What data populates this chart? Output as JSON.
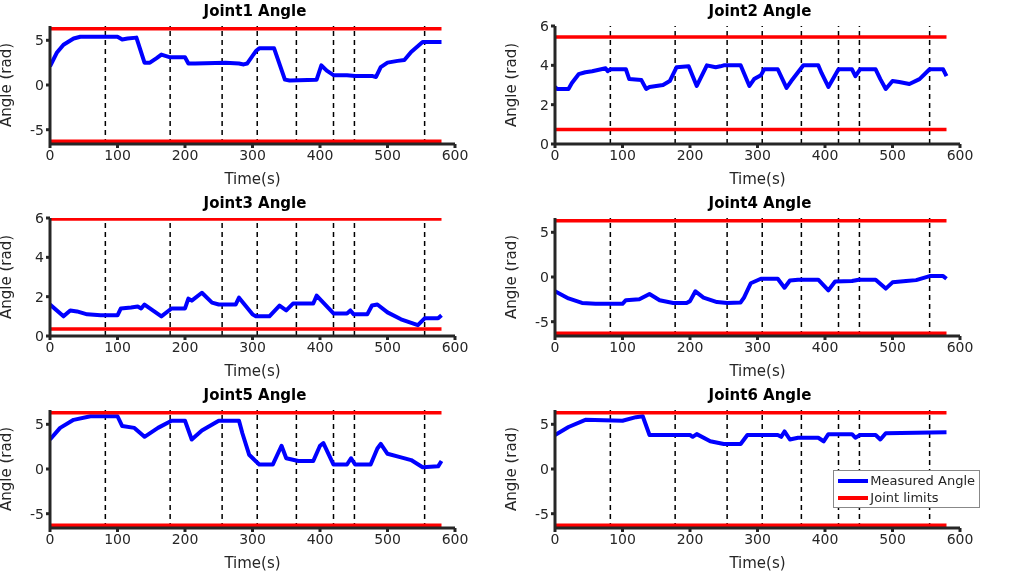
{
  "chart_data": [
    {
      "type": "line",
      "title": "Joint1 Angle",
      "xlabel": "Time(s)",
      "ylabel": "Angle (rad)",
      "xlim": [
        0,
        600
      ],
      "xticks": [
        0,
        100,
        200,
        300,
        400,
        500,
        600
      ],
      "ylim": [
        -6.6,
        6.6
      ],
      "yticks": [
        -5,
        0,
        5
      ],
      "series": [
        {
          "color": "#0000ff",
          "x": [
            0,
            10,
            20,
            35,
            45,
            100,
            107,
            115,
            128,
            140,
            148,
            158,
            165,
            178,
            200,
            205,
            215,
            260,
            280,
            287,
            292,
            305,
            310,
            332,
            348,
            355,
            395,
            402,
            410,
            420,
            440,
            452,
            478,
            483,
            490,
            500,
            515,
            525,
            535,
            552,
            580
          ],
          "values": [
            2.1,
            3.6,
            4.5,
            5.2,
            5.4,
            5.4,
            5.1,
            5.2,
            5.3,
            2.5,
            2.5,
            3.0,
            3.4,
            3.1,
            3.1,
            2.4,
            2.4,
            2.5,
            2.4,
            2.3,
            2.4,
            3.8,
            4.1,
            4.1,
            0.6,
            0.5,
            0.6,
            2.2,
            1.6,
            1.1,
            1.1,
            1.0,
            1.0,
            0.9,
            2.0,
            2.5,
            2.7,
            2.8,
            3.7,
            4.8,
            4.8
          ]
        },
        {
          "color": "#ff0000",
          "x": [
            0,
            580
          ],
          "values": [
            6.28,
            6.28
          ]
        },
        {
          "color": "#ff0000",
          "x": [
            0,
            580
          ],
          "values": [
            -6.28,
            -6.28
          ]
        }
      ],
      "ref_lines": [
        {
          "axis": "x",
          "value": 82,
          "color": "#000000",
          "line_style": "dashed"
        },
        {
          "axis": "x",
          "value": 178,
          "color": "#000000",
          "line_style": "dashed"
        },
        {
          "axis": "x",
          "value": 255,
          "color": "#000000",
          "line_style": "dashed"
        },
        {
          "axis": "x",
          "value": 307,
          "color": "#000000",
          "line_style": "dashed"
        },
        {
          "axis": "x",
          "value": 365,
          "color": "#000000",
          "line_style": "dashed"
        },
        {
          "axis": "x",
          "value": 420,
          "color": "#000000",
          "line_style": "dashed"
        },
        {
          "axis": "x",
          "value": 451,
          "color": "#000000",
          "line_style": "dashed"
        },
        {
          "axis": "x",
          "value": 555,
          "color": "#000000",
          "line_style": "dashed"
        }
      ]
    },
    {
      "type": "line",
      "title": "Joint2 Angle",
      "xlabel": "Time(s)",
      "ylabel": "Angle (rad)",
      "xlim": [
        0,
        600
      ],
      "xticks": [
        0,
        100,
        200,
        300,
        400,
        500,
        600
      ],
      "ylim": [
        0,
        6
      ],
      "yticks": [
        0,
        2,
        4,
        6
      ],
      "series": [
        {
          "color": "#0000ff",
          "x": [
            0,
            3,
            20,
            25,
            35,
            45,
            55,
            75,
            78,
            82,
            105,
            110,
            128,
            135,
            140,
            160,
            170,
            180,
            198,
            210,
            225,
            238,
            245,
            250,
            275,
            288,
            295,
            305,
            310,
            330,
            343,
            350,
            368,
            390,
            395,
            405,
            420,
            440,
            445,
            452,
            475,
            482,
            490,
            500,
            510,
            525,
            540,
            555,
            575,
            580
          ],
          "values": [
            2.9,
            2.8,
            2.8,
            3.1,
            3.55,
            3.65,
            3.7,
            3.85,
            3.7,
            3.8,
            3.8,
            3.3,
            3.25,
            2.8,
            2.9,
            3.0,
            3.2,
            3.9,
            3.95,
            2.95,
            4.0,
            3.9,
            3.95,
            4.0,
            4.0,
            2.95,
            3.3,
            3.5,
            3.8,
            3.8,
            2.85,
            3.2,
            4.0,
            4.0,
            3.6,
            2.9,
            3.8,
            3.8,
            3.45,
            3.8,
            3.8,
            3.3,
            2.8,
            3.2,
            3.15,
            3.05,
            3.3,
            3.8,
            3.8,
            3.45
          ]
        },
        {
          "color": "#ff0000",
          "x": [
            0,
            580
          ],
          "values": [
            5.44,
            5.44
          ]
        },
        {
          "color": "#ff0000",
          "x": [
            0,
            580
          ],
          "values": [
            0.74,
            0.74
          ]
        }
      ],
      "ref_lines": [
        {
          "axis": "x",
          "value": 82,
          "color": "#000000",
          "line_style": "dashed"
        },
        {
          "axis": "x",
          "value": 178,
          "color": "#000000",
          "line_style": "dashed"
        },
        {
          "axis": "x",
          "value": 255,
          "color": "#000000",
          "line_style": "dashed"
        },
        {
          "axis": "x",
          "value": 307,
          "color": "#000000",
          "line_style": "dashed"
        },
        {
          "axis": "x",
          "value": 365,
          "color": "#000000",
          "line_style": "dashed"
        },
        {
          "axis": "x",
          "value": 420,
          "color": "#000000",
          "line_style": "dashed"
        },
        {
          "axis": "x",
          "value": 451,
          "color": "#000000",
          "line_style": "dashed"
        },
        {
          "axis": "x",
          "value": 555,
          "color": "#000000",
          "line_style": "dashed"
        }
      ]
    },
    {
      "type": "line",
      "title": "Joint3 Angle",
      "xlabel": "Time(s)",
      "ylabel": "Angle (rad)",
      "xlim": [
        0,
        600
      ],
      "xticks": [
        0,
        100,
        200,
        300,
        400,
        500,
        600
      ],
      "ylim": [
        0,
        6
      ],
      "yticks": [
        0,
        2,
        4,
        6
      ],
      "series": [
        {
          "color": "#0000ff",
          "x": [
            0,
            20,
            30,
            40,
            55,
            75,
            100,
            105,
            120,
            130,
            135,
            140,
            165,
            180,
            200,
            205,
            210,
            225,
            240,
            250,
            275,
            280,
            300,
            305,
            325,
            340,
            350,
            360,
            390,
            395,
            420,
            440,
            445,
            450,
            470,
            477,
            485,
            500,
            520,
            545,
            555,
            575,
            580
          ],
          "values": [
            1.6,
            1.0,
            1.3,
            1.25,
            1.1,
            1.05,
            1.05,
            1.4,
            1.45,
            1.5,
            1.4,
            1.6,
            1.0,
            1.4,
            1.4,
            1.9,
            1.8,
            2.2,
            1.7,
            1.6,
            1.6,
            1.95,
            1.1,
            1.0,
            1.0,
            1.55,
            1.3,
            1.65,
            1.65,
            2.05,
            1.15,
            1.15,
            1.3,
            1.1,
            1.1,
            1.55,
            1.6,
            1.2,
            0.85,
            0.55,
            0.9,
            0.9,
            1.05
          ]
        },
        {
          "color": "#ff0000",
          "x": [
            0,
            580
          ],
          "values": [
            5.95,
            5.95
          ]
        },
        {
          "color": "#ff0000",
          "x": [
            0,
            580
          ],
          "values": [
            0.35,
            0.35
          ]
        }
      ],
      "ref_lines": [
        {
          "axis": "x",
          "value": 82,
          "color": "#000000",
          "line_style": "dashed"
        },
        {
          "axis": "x",
          "value": 178,
          "color": "#000000",
          "line_style": "dashed"
        },
        {
          "axis": "x",
          "value": 255,
          "color": "#000000",
          "line_style": "dashed"
        },
        {
          "axis": "x",
          "value": 307,
          "color": "#000000",
          "line_style": "dashed"
        },
        {
          "axis": "x",
          "value": 365,
          "color": "#000000",
          "line_style": "dashed"
        },
        {
          "axis": "x",
          "value": 420,
          "color": "#000000",
          "line_style": "dashed"
        },
        {
          "axis": "x",
          "value": 451,
          "color": "#000000",
          "line_style": "dashed"
        },
        {
          "axis": "x",
          "value": 555,
          "color": "#000000",
          "line_style": "dashed"
        }
      ]
    },
    {
      "type": "line",
      "title": "Joint4 Angle",
      "xlabel": "Time(s)",
      "ylabel": "Angle (rad)",
      "xlim": [
        0,
        600
      ],
      "xticks": [
        0,
        100,
        200,
        300,
        400,
        500,
        600
      ],
      "ylim": [
        -6.6,
        6.6
      ],
      "yticks": [
        -5,
        0,
        5
      ],
      "series": [
        {
          "color": "#0000ff",
          "x": [
            0,
            20,
            40,
            60,
            100,
            105,
            125,
            140,
            155,
            175,
            195,
            200,
            208,
            220,
            240,
            255,
            275,
            280,
            290,
            305,
            330,
            340,
            348,
            360,
            390,
            405,
            415,
            440,
            450,
            475,
            490,
            500,
            520,
            535,
            555,
            575,
            580
          ],
          "values": [
            -1.6,
            -2.4,
            -2.9,
            -3.0,
            -3.0,
            -2.6,
            -2.5,
            -1.9,
            -2.6,
            -2.9,
            -2.9,
            -2.7,
            -1.6,
            -2.3,
            -2.8,
            -2.9,
            -2.85,
            -2.3,
            -0.7,
            -0.2,
            -0.2,
            -1.2,
            -0.4,
            -0.3,
            -0.3,
            -1.5,
            -0.5,
            -0.45,
            -0.3,
            -0.3,
            -1.3,
            -0.6,
            -0.45,
            -0.35,
            0.1,
            0.1,
            -0.2
          ]
        },
        {
          "color": "#ff0000",
          "x": [
            0,
            580
          ],
          "values": [
            6.28,
            6.28
          ]
        },
        {
          "color": "#ff0000",
          "x": [
            0,
            580
          ],
          "values": [
            -6.28,
            -6.28
          ]
        }
      ],
      "ref_lines": [
        {
          "axis": "x",
          "value": 82,
          "color": "#000000",
          "line_style": "dashed"
        },
        {
          "axis": "x",
          "value": 178,
          "color": "#000000",
          "line_style": "dashed"
        },
        {
          "axis": "x",
          "value": 255,
          "color": "#000000",
          "line_style": "dashed"
        },
        {
          "axis": "x",
          "value": 307,
          "color": "#000000",
          "line_style": "dashed"
        },
        {
          "axis": "x",
          "value": 365,
          "color": "#000000",
          "line_style": "dashed"
        },
        {
          "axis": "x",
          "value": 420,
          "color": "#000000",
          "line_style": "dashed"
        },
        {
          "axis": "x",
          "value": 451,
          "color": "#000000",
          "line_style": "dashed"
        },
        {
          "axis": "x",
          "value": 555,
          "color": "#000000",
          "line_style": "dashed"
        }
      ]
    },
    {
      "type": "line",
      "title": "Joint5 Angle",
      "xlabel": "Time(s)",
      "ylabel": "Angle (rad)",
      "xlim": [
        0,
        600
      ],
      "xticks": [
        0,
        100,
        200,
        300,
        400,
        500,
        600
      ],
      "ylim": [
        -6.6,
        6.6
      ],
      "yticks": [
        -5,
        0,
        5
      ],
      "series": [
        {
          "color": "#0000ff",
          "x": [
            0,
            15,
            35,
            60,
            100,
            107,
            125,
            140,
            160,
            180,
            200,
            210,
            225,
            250,
            280,
            285,
            295,
            310,
            330,
            343,
            350,
            368,
            390,
            400,
            405,
            420,
            440,
            446,
            452,
            475,
            485,
            490,
            500,
            520,
            535,
            552,
            575,
            580
          ],
          "values": [
            3.3,
            4.6,
            5.5,
            5.9,
            5.9,
            4.8,
            4.6,
            3.6,
            4.6,
            5.4,
            5.4,
            3.3,
            4.3,
            5.4,
            5.4,
            4.0,
            1.6,
            0.5,
            0.5,
            2.6,
            1.2,
            0.9,
            0.9,
            2.6,
            2.9,
            0.5,
            0.5,
            1.2,
            0.5,
            0.5,
            2.3,
            2.8,
            1.7,
            1.3,
            1.0,
            0.2,
            0.3,
            0.9
          ]
        },
        {
          "color": "#ff0000",
          "x": [
            0,
            580
          ],
          "values": [
            6.28,
            6.28
          ]
        },
        {
          "color": "#ff0000",
          "x": [
            0,
            580
          ],
          "values": [
            -6.28,
            -6.28
          ]
        }
      ],
      "ref_lines": [
        {
          "axis": "x",
          "value": 82,
          "color": "#000000",
          "line_style": "dashed"
        },
        {
          "axis": "x",
          "value": 178,
          "color": "#000000",
          "line_style": "dashed"
        },
        {
          "axis": "x",
          "value": 255,
          "color": "#000000",
          "line_style": "dashed"
        },
        {
          "axis": "x",
          "value": 307,
          "color": "#000000",
          "line_style": "dashed"
        },
        {
          "axis": "x",
          "value": 365,
          "color": "#000000",
          "line_style": "dashed"
        },
        {
          "axis": "x",
          "value": 420,
          "color": "#000000",
          "line_style": "dashed"
        },
        {
          "axis": "x",
          "value": 451,
          "color": "#000000",
          "line_style": "dashed"
        },
        {
          "axis": "x",
          "value": 555,
          "color": "#000000",
          "line_style": "dashed"
        }
      ]
    },
    {
      "type": "line",
      "title": "Joint6 Angle",
      "xlabel": "Time(s)",
      "ylabel": "Angle (rad)",
      "xlim": [
        0,
        600
      ],
      "xticks": [
        0,
        100,
        200,
        300,
        400,
        500,
        600
      ],
      "ylim": [
        -6.6,
        6.6
      ],
      "yticks": [
        -5,
        0,
        5
      ],
      "legend": "right",
      "series": [
        {
          "name": "Measured Angle",
          "color": "#0000ff",
          "x": [
            0,
            20,
            45,
            100,
            120,
            130,
            140,
            200,
            204,
            210,
            230,
            250,
            275,
            285,
            330,
            335,
            340,
            348,
            360,
            390,
            398,
            405,
            440,
            445,
            452,
            475,
            482,
            490,
            580
          ],
          "values": [
            3.8,
            4.7,
            5.5,
            5.4,
            5.8,
            5.9,
            3.8,
            3.8,
            3.6,
            3.9,
            3.1,
            2.8,
            2.8,
            3.8,
            3.8,
            3.6,
            4.2,
            3.3,
            3.5,
            3.5,
            3.1,
            3.9,
            3.9,
            3.5,
            3.8,
            3.8,
            3.3,
            4.0,
            4.1
          ]
        },
        {
          "name": "Joint limits",
          "color": "#ff0000",
          "x": [
            0,
            580
          ],
          "values": [
            6.28,
            6.28
          ]
        },
        {
          "color": "#ff0000",
          "x": [
            0,
            580
          ],
          "values": [
            -6.28,
            -6.28
          ]
        }
      ],
      "ref_lines": [
        {
          "axis": "x",
          "value": 82,
          "color": "#000000",
          "line_style": "dashed"
        },
        {
          "axis": "x",
          "value": 178,
          "color": "#000000",
          "line_style": "dashed"
        },
        {
          "axis": "x",
          "value": 255,
          "color": "#000000",
          "line_style": "dashed"
        },
        {
          "axis": "x",
          "value": 307,
          "color": "#000000",
          "line_style": "dashed"
        },
        {
          "axis": "x",
          "value": 365,
          "color": "#000000",
          "line_style": "dashed"
        },
        {
          "axis": "x",
          "value": 420,
          "color": "#000000",
          "line_style": "dashed"
        },
        {
          "axis": "x",
          "value": 451,
          "color": "#000000",
          "line_style": "dashed"
        },
        {
          "axis": "x",
          "value": 555,
          "color": "#000000",
          "line_style": "dashed"
        }
      ]
    }
  ]
}
